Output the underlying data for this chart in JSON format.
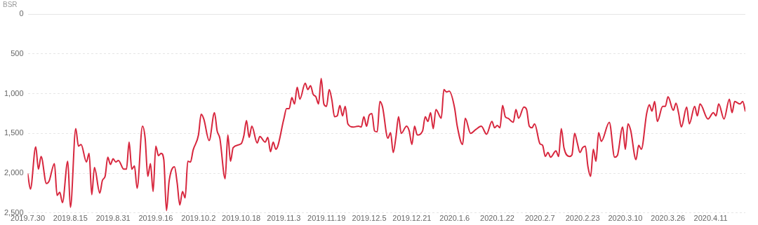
{
  "chart_data": {
    "type": "line",
    "ylabel": "BSR",
    "x": [
      "2019-07-30",
      "2019-07-31",
      "2019-08-02",
      "2019-08-03",
      "2019-08-04",
      "2019-08-06",
      "2019-08-07",
      "2019-08-09",
      "2019-08-10",
      "2019-08-11",
      "2019-08-12",
      "2019-08-14",
      "2019-08-15",
      "2019-08-17",
      "2019-08-18",
      "2019-08-19",
      "2019-08-21",
      "2019-08-22",
      "2019-08-23",
      "2019-08-24",
      "2019-08-26",
      "2019-08-27",
      "2019-08-28",
      "2019-08-29",
      "2019-08-30",
      "2019-08-31",
      "2019-09-01",
      "2019-09-02",
      "2019-09-04",
      "2019-09-05",
      "2019-09-06",
      "2019-09-07",
      "2019-09-08",
      "2019-09-09",
      "2019-09-11",
      "2019-09-12",
      "2019-09-13",
      "2019-09-14",
      "2019-09-15",
      "2019-09-16",
      "2019-09-17",
      "2019-09-18",
      "2019-09-19",
      "2019-09-20",
      "2019-09-21",
      "2019-09-23",
      "2019-09-24",
      "2019-09-25",
      "2019-09-26",
      "2019-09-27",
      "2019-09-28",
      "2019-09-29",
      "2019-09-30",
      "2019-10-02",
      "2019-10-03",
      "2019-10-04",
      "2019-10-06",
      "2019-10-08",
      "2019-10-09",
      "2019-10-10",
      "2019-10-12",
      "2019-10-13",
      "2019-10-14",
      "2019-10-15",
      "2019-10-18",
      "2019-10-19",
      "2019-10-20",
      "2019-10-21",
      "2019-10-22",
      "2019-10-24",
      "2019-10-25",
      "2019-10-27",
      "2019-10-28",
      "2019-10-29",
      "2019-10-30",
      "2019-10-31",
      "2019-11-03",
      "2019-11-04",
      "2019-11-05",
      "2019-11-06",
      "2019-11-07",
      "2019-11-08",
      "2019-11-09",
      "2019-11-11",
      "2019-11-12",
      "2019-11-13",
      "2019-11-14",
      "2019-11-15",
      "2019-11-16",
      "2019-11-17",
      "2019-11-18",
      "2019-11-19",
      "2019-11-20",
      "2019-11-21",
      "2019-11-22",
      "2019-11-23",
      "2019-11-24",
      "2019-11-25",
      "2019-11-26",
      "2019-11-27",
      "2019-11-29",
      "2019-12-01",
      "2019-12-02",
      "2019-12-03",
      "2019-12-04",
      "2019-12-05",
      "2019-12-06",
      "2019-12-07",
      "2019-12-08",
      "2019-12-09",
      "2019-12-10",
      "2019-12-12",
      "2019-12-13",
      "2019-12-14",
      "2019-12-15",
      "2019-12-16",
      "2019-12-17",
      "2019-12-19",
      "2019-12-20",
      "2019-12-21",
      "2019-12-22",
      "2019-12-23",
      "2019-12-25",
      "2019-12-26",
      "2019-12-27",
      "2019-12-28",
      "2019-12-29",
      "2019-12-30",
      "2020-01-01",
      "2020-01-02",
      "2020-01-03",
      "2020-01-04",
      "2020-01-06",
      "2020-01-07",
      "2020-01-09",
      "2020-01-10",
      "2020-01-12",
      "2020-01-14",
      "2020-01-16",
      "2020-01-18",
      "2020-01-20",
      "2020-01-21",
      "2020-01-22",
      "2020-01-23",
      "2020-01-24",
      "2020-01-25",
      "2020-01-26",
      "2020-01-28",
      "2020-01-29",
      "2020-01-30",
      "2020-02-01",
      "2020-02-02",
      "2020-02-03",
      "2020-02-04",
      "2020-02-05",
      "2020-02-07",
      "2020-02-08",
      "2020-02-09",
      "2020-02-10",
      "2020-02-11",
      "2020-02-13",
      "2020-02-14",
      "2020-02-15",
      "2020-02-16",
      "2020-02-18",
      "2020-02-19",
      "2020-02-20",
      "2020-02-21",
      "2020-02-22",
      "2020-02-23",
      "2020-02-24",
      "2020-02-25",
      "2020-02-26",
      "2020-02-27",
      "2020-02-28",
      "2020-02-29",
      "2020-03-01",
      "2020-03-04",
      "2020-03-06",
      "2020-03-07",
      "2020-03-09",
      "2020-03-10",
      "2020-03-11",
      "2020-03-12",
      "2020-03-14",
      "2020-03-15",
      "2020-03-16",
      "2020-03-18",
      "2020-03-19",
      "2020-03-20",
      "2020-03-21",
      "2020-03-22",
      "2020-03-24",
      "2020-03-25",
      "2020-03-26",
      "2020-03-28",
      "2020-03-29",
      "2020-03-30",
      "2020-03-31",
      "2020-04-02",
      "2020-04-03",
      "2020-04-05",
      "2020-04-06",
      "2020-04-07",
      "2020-04-10",
      "2020-04-12",
      "2020-04-13",
      "2020-04-14",
      "2020-04-16",
      "2020-04-18",
      "2020-04-19",
      "2020-04-20",
      "2020-04-22",
      "2020-04-23",
      "2020-04-24"
    ],
    "series": [
      {
        "color": "#d7263d",
        "values": [
          2010,
          2200,
          1670,
          1950,
          1790,
          2130,
          2100,
          1880,
          2280,
          2240,
          2370,
          1850,
          2430,
          1440,
          1660,
          1640,
          1860,
          1750,
          2270,
          1930,
          2250,
          2090,
          2040,
          1800,
          1890,
          1820,
          1860,
          1840,
          1950,
          1950,
          1610,
          1950,
          1910,
          2190,
          1410,
          1560,
          2040,
          1880,
          2230,
          1660,
          1780,
          1750,
          1830,
          2470,
          2100,
          1920,
          2120,
          2400,
          2230,
          2310,
          1850,
          1860,
          1710,
          1520,
          1260,
          1320,
          1590,
          1240,
          1470,
          1560,
          2070,
          1520,
          1850,
          1680,
          1630,
          1530,
          1340,
          1550,
          1410,
          1620,
          1540,
          1610,
          1550,
          1730,
          1610,
          1700,
          1320,
          1190,
          1190,
          1050,
          1130,
          920,
          1070,
          870,
          950,
          900,
          1010,
          1040,
          1130,
          810,
          1130,
          1160,
          950,
          1080,
          1290,
          1280,
          1150,
          1280,
          1160,
          1380,
          1420,
          1410,
          1420,
          1290,
          1410,
          1270,
          1250,
          1470,
          1480,
          1100,
          1170,
          1560,
          1490,
          1740,
          1550,
          1290,
          1500,
          1410,
          1470,
          1640,
          1410,
          1520,
          1470,
          1290,
          1350,
          1240,
          1440,
          1200,
          1310,
          950,
          980,
          970,
          1180,
          1410,
          1640,
          1310,
          1500,
          1450,
          1410,
          1510,
          1350,
          1430,
          1400,
          1430,
          1150,
          1290,
          1310,
          1360,
          1200,
          1310,
          1170,
          1200,
          1410,
          1430,
          1380,
          1630,
          1650,
          1790,
          1740,
          1800,
          1720,
          1790,
          1440,
          1680,
          1790,
          1770,
          1500,
          1620,
          1740,
          1680,
          1660,
          1920,
          2040,
          1700,
          1850,
          1490,
          1600,
          1360,
          1800,
          1780,
          1420,
          1700,
          1380,
          1460,
          1830,
          1650,
          1700,
          1250,
          1140,
          1220,
          1100,
          1350,
          1160,
          1160,
          1040,
          1210,
          1120,
          1250,
          1420,
          1170,
          1380,
          1160,
          1280,
          1130,
          1320,
          1240,
          1280,
          1130,
          1320,
          1070,
          1240,
          1100,
          1130,
          1100,
          1220
        ]
      }
    ],
    "xlim": [
      "2019-07-30",
      "2020-04-24"
    ],
    "xticks": [
      {
        "value": "2019-07-30",
        "label": "2019.7.30"
      },
      {
        "value": "2019-08-15",
        "label": "2019.8.15"
      },
      {
        "value": "2019-08-31",
        "label": "2019.8.31"
      },
      {
        "value": "2019-09-16",
        "label": "2019.9.16"
      },
      {
        "value": "2019-10-02",
        "label": "2019.10.2"
      },
      {
        "value": "2019-10-18",
        "label": "2019.10.18"
      },
      {
        "value": "2019-11-03",
        "label": "2019.11.3"
      },
      {
        "value": "2019-11-19",
        "label": "2019.11.19"
      },
      {
        "value": "2019-12-05",
        "label": "2019.12.5"
      },
      {
        "value": "2019-12-21",
        "label": "2019.12.21"
      },
      {
        "value": "2020-01-06",
        "label": "2020.1.6"
      },
      {
        "value": "2020-01-22",
        "label": "2020.1.22"
      },
      {
        "value": "2020-02-07",
        "label": "2020.2.7"
      },
      {
        "value": "2020-02-23",
        "label": "2020.2.23"
      },
      {
        "value": "2020-03-10",
        "label": "2020.3.10"
      },
      {
        "value": "2020-03-26",
        "label": "2020.3.26"
      },
      {
        "value": "2020-04-11",
        "label": "2020.4.11"
      }
    ],
    "ylim": [
      2500,
      0
    ],
    "yticks": [
      0,
      500,
      {
        "value": 1000,
        "label": "1,000"
      },
      {
        "value": 1500,
        "label": "1,500"
      },
      {
        "value": 2000,
        "label": "2,000"
      },
      {
        "value": 2500,
        "label": "2,500"
      }
    ],
    "grid": "y",
    "legend": false,
    "marker": "none",
    "line_style": "solid"
  }
}
